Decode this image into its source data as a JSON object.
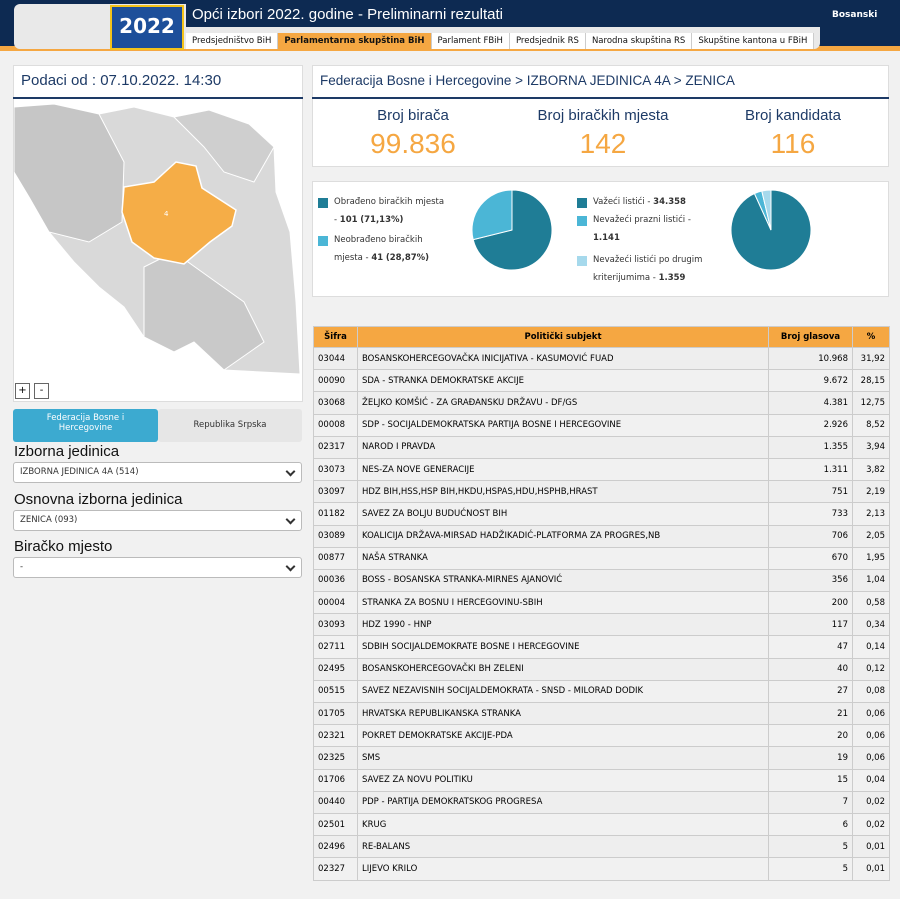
{
  "header": {
    "logo_text": "2022",
    "title": "Opći izbori 2022. godine - Preliminarni rezultati",
    "language": "Bosanski",
    "nav": [
      "Predsjedništvo BiH",
      "Parlamentarna skupština BiH",
      "Parlament FBiH",
      "Predsjednik RS",
      "Narodna skupština RS",
      "Skupštine kantona u FBiH"
    ]
  },
  "left": {
    "data_from": "Podaci od : 07.10.2022. 14:30",
    "map_labels": [
      "4"
    ],
    "zoom": [
      "+",
      "-"
    ],
    "tabs": [
      "Federacija Bosne i Hercegovine",
      "Republika Srpska"
    ],
    "fields": [
      {
        "label": "Izborna jedinica",
        "value": "IZBORNA JEDINICA 4A (514)"
      },
      {
        "label": "Osnovna izborna jedinica",
        "value": "ZENICA (093)"
      },
      {
        "label": "Biračko mjesto",
        "value": "-"
      }
    ]
  },
  "breadcrumb": "Federacija Bosne i Hercegovine > IZBORNA JEDINICA 4A > ZENICA",
  "stats": [
    {
      "label": "Broj birača",
      "value": "99.836"
    },
    {
      "label": "Broj biračkih mjesta",
      "value": "142"
    },
    {
      "label": "Broj kandidata",
      "value": "116"
    }
  ],
  "pies": [
    {
      "type": "pie",
      "slices": [
        {
          "name": "Obrađeno biračkih mjesta -",
          "value": 101,
          "share": "(71,13%)",
          "color": "#1f7d96"
        },
        {
          "name": "Neobrađeno biračkih mjesta -",
          "value": 41,
          "share": "(28,87%)",
          "color": "#4bb6d6"
        }
      ]
    },
    {
      "type": "pie",
      "slices": [
        {
          "name": "Važeći listići -",
          "value": 34358,
          "value_label": "34.358",
          "color": "#1f7d96"
        },
        {
          "name": "Nevažeći prazni listići -",
          "value": 1141,
          "value_label": "1.141",
          "color": "#4bb6d6"
        },
        {
          "name": "Nevažeći listići po drugim kriterijumima -",
          "value": 1359,
          "value_label": "1.359",
          "color": "#a6d9ec"
        }
      ]
    }
  ],
  "table": {
    "columns": [
      "Šifra",
      "Politički subjekt",
      "Broj glasova",
      "%"
    ],
    "rows": [
      [
        "03044",
        "BOSANSKOHERCEGOVAČKA INICIJATIVA - KASUMOVIĆ FUAD",
        "10.968",
        "31,92"
      ],
      [
        "00090",
        "SDA - STRANKA DEMOKRATSKE AKCIJE",
        "9.672",
        "28,15"
      ],
      [
        "03068",
        "ŽELJKO KOMŠIĆ - ZA GRAĐANSKU DRŽAVU - DF/GS",
        "4.381",
        "12,75"
      ],
      [
        "00008",
        "SDP - SOCIJALDEMOKRATSKA PARTIJA BOSNE I HERCEGOVINE",
        "2.926",
        "8,52"
      ],
      [
        "02317",
        "NAROD I PRAVDA",
        "1.355",
        "3,94"
      ],
      [
        "03073",
        "NES-ZA NOVE GENERACIJE",
        "1.311",
        "3,82"
      ],
      [
        "03097",
        "HDZ BIH,HSS,HSP BIH,HKDU,HSPAS,HDU,HSPHB,HRAST",
        "751",
        "2,19"
      ],
      [
        "01182",
        "SAVEZ ZA BOLJU BUDUĆNOST BIH",
        "733",
        "2,13"
      ],
      [
        "03089",
        "KOALICIJA DRŽAVA-MIRSAD HADŽIKADIĆ-PLATFORMA ZA PROGRES,NB",
        "706",
        "2,05"
      ],
      [
        "00877",
        "NAŠA STRANKA",
        "670",
        "1,95"
      ],
      [
        "00036",
        "BOSS - BOSANSKA STRANKA-MIRNES AJANOVIĆ",
        "356",
        "1,04"
      ],
      [
        "00004",
        "STRANKA ZA BOSNU I HERCEGOVINU-SBIH",
        "200",
        "0,58"
      ],
      [
        "03093",
        "HDZ 1990 - HNP",
        "117",
        "0,34"
      ],
      [
        "02711",
        "SDBIH SOCIJALDEMOKRATE BOSNE I HERCEGOVINE",
        "47",
        "0,14"
      ],
      [
        "02495",
        "BOSANSKOHERCEGOVAČKI BH ZELENI",
        "40",
        "0,12"
      ],
      [
        "00515",
        "SAVEZ NEZAVISNIH SOCIJALDEMOKRATA - SNSD - MILORAD DODIK",
        "27",
        "0,08"
      ],
      [
        "01705",
        "HRVATSKA REPUBLIKANSKA STRANKA",
        "21",
        "0,06"
      ],
      [
        "02321",
        "POKRET DEMOKRATSKE AKCIJE-PDA",
        "20",
        "0,06"
      ],
      [
        "02325",
        "SMS",
        "19",
        "0,06"
      ],
      [
        "01706",
        "SAVEZ ZA NOVU POLITIKU",
        "15",
        "0,04"
      ],
      [
        "00440",
        "PDP - PARTIJA DEMOKRATSKOG PROGRESA",
        "7",
        "0,02"
      ],
      [
        "02501",
        "KRUG",
        "6",
        "0,02"
      ],
      [
        "02496",
        "RE-BALANS",
        "5",
        "0,01"
      ],
      [
        "02327",
        "LIJEVO KRILO",
        "5",
        "0,01"
      ]
    ]
  }
}
